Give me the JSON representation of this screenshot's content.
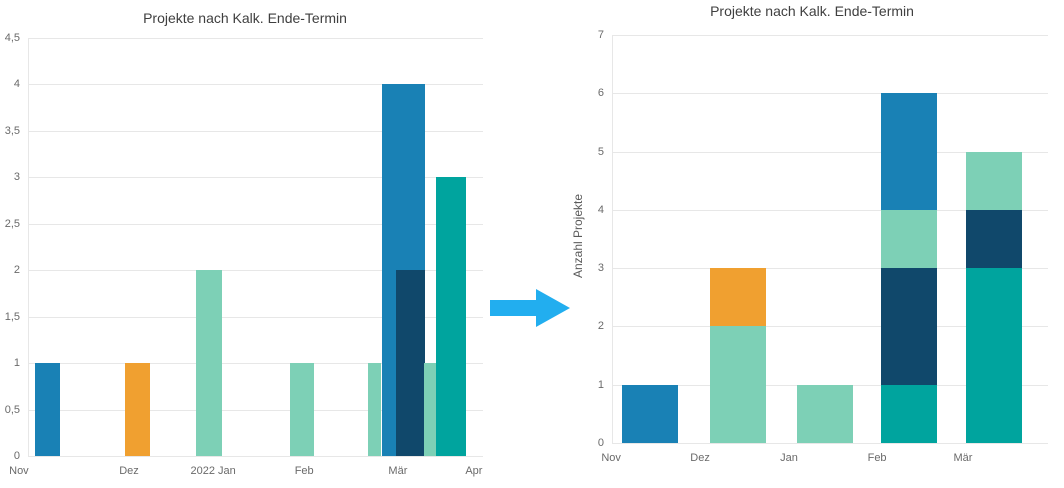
{
  "palette": {
    "blue": "#1981b5",
    "orange": "#f0a030",
    "mint": "#7dd0b6",
    "navy": "#10486b",
    "teal": "#00a49e"
  },
  "arrow": {
    "color": "#22aeef"
  },
  "chart_data": [
    {
      "type": "bar",
      "variant": "clustered-columns",
      "title": "Projekte nach Kalk. Ende-Termin",
      "xlabel": "",
      "ylabel": "",
      "ylim": [
        0,
        4.5
      ],
      "grid": true,
      "yticks": [
        {
          "value": 0,
          "label": "0"
        },
        {
          "value": 0.5,
          "label": "0,5"
        },
        {
          "value": 1,
          "label": "1"
        },
        {
          "value": 1.5,
          "label": "1,5"
        },
        {
          "value": 2,
          "label": "2"
        },
        {
          "value": 2.5,
          "label": "2,5"
        },
        {
          "value": 3,
          "label": "3"
        },
        {
          "value": 3.5,
          "label": "3,5"
        },
        {
          "value": 4,
          "label": "4"
        },
        {
          "value": 4.5,
          "label": "4,5"
        }
      ],
      "xticks": [
        {
          "label": "Nov",
          "pos": -0.02
        },
        {
          "label": "Dez",
          "pos": 0.222
        },
        {
          "label": "2022 Jan",
          "pos": 0.407
        },
        {
          "label": "Feb",
          "pos": 0.607
        },
        {
          "label": "Mär",
          "pos": 0.813
        },
        {
          "label": "Apr",
          "pos": 0.98
        }
      ],
      "bars": [
        {
          "month": "Nov",
          "color": "blue",
          "value": 1,
          "x": 0.015,
          "w": 0.055
        },
        {
          "month": "Dez",
          "color": "orange",
          "value": 1,
          "x": 0.213,
          "w": 0.055
        },
        {
          "month": "2022 Jan",
          "color": "mint",
          "value": 2,
          "x": 0.369,
          "w": 0.057
        },
        {
          "month": "Feb",
          "color": "mint",
          "value": 1,
          "x": 0.576,
          "w": 0.053
        },
        {
          "month": "Mär",
          "color": "mint",
          "value": 1,
          "x": 0.747,
          "w": 0.029
        },
        {
          "month": "Mär",
          "color": "blue",
          "value": 4,
          "x": 0.778,
          "w": 0.094
        },
        {
          "month": "Mär",
          "color": "navy",
          "value": 2,
          "x": 0.809,
          "w": 0.063
        },
        {
          "month": "Apr",
          "color": "mint",
          "value": 1,
          "x": 0.87,
          "w": 0.026
        },
        {
          "month": "Apr",
          "color": "teal",
          "value": 3,
          "x": 0.897,
          "w": 0.066
        }
      ]
    },
    {
      "type": "bar",
      "variant": "stacked-columns",
      "title": "Projekte nach Kalk. Ende-Termin",
      "xlabel": "",
      "ylabel": "Anzahl Projekte",
      "ylim": [
        0,
        7
      ],
      "grid": true,
      "yticks": [
        {
          "value": 0,
          "label": "0"
        },
        {
          "value": 1,
          "label": "1"
        },
        {
          "value": 2,
          "label": "2"
        },
        {
          "value": 3,
          "label": "3"
        },
        {
          "value": 4,
          "label": "4"
        },
        {
          "value": 5,
          "label": "5"
        },
        {
          "value": 6,
          "label": "6"
        },
        {
          "value": 7,
          "label": "7"
        }
      ],
      "categories": [
        "Nov",
        "Dez",
        "Jan",
        "Feb",
        "Mär"
      ],
      "xtick_pos": [
        -0.002,
        0.202,
        0.406,
        0.608,
        0.805
      ],
      "bar_centers": [
        0.087,
        0.289,
        0.489,
        0.681,
        0.876
      ],
      "bar_width": 0.128,
      "stacks": [
        {
          "category": "Nov",
          "total": 1,
          "segments": [
            {
              "color": "blue",
              "value": 1
            }
          ]
        },
        {
          "category": "Dez",
          "total": 3,
          "segments": [
            {
              "color": "mint",
              "value": 2
            },
            {
              "color": "orange",
              "value": 1
            }
          ]
        },
        {
          "category": "Jan",
          "total": 1,
          "segments": [
            {
              "color": "mint",
              "value": 1
            }
          ]
        },
        {
          "category": "Feb",
          "total": 6,
          "segments": [
            {
              "color": "teal",
              "value": 1
            },
            {
              "color": "navy",
              "value": 2
            },
            {
              "color": "mint",
              "value": 1
            },
            {
              "color": "blue",
              "value": 2
            }
          ]
        },
        {
          "category": "Mär",
          "total": 5,
          "segments": [
            {
              "color": "teal",
              "value": 3
            },
            {
              "color": "navy",
              "value": 1
            },
            {
              "color": "mint",
              "value": 1
            }
          ]
        }
      ]
    }
  ]
}
